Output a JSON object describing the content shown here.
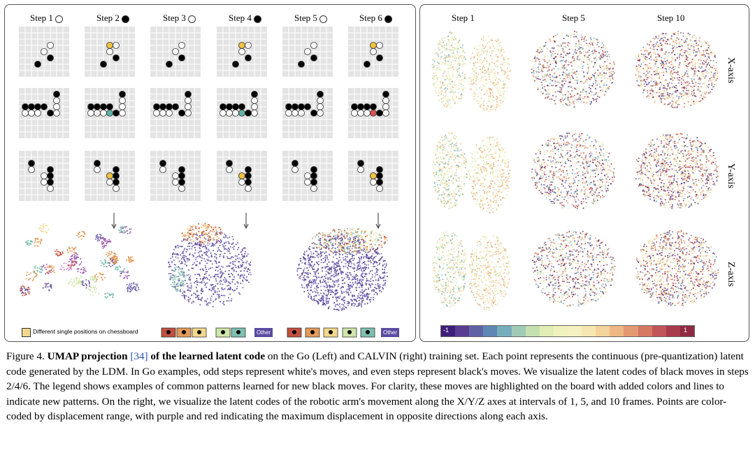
{
  "left_panel": {
    "steps": [
      {
        "label": "Step 1",
        "stone": "white"
      },
      {
        "label": "Step 2",
        "stone": "black"
      },
      {
        "label": "Step 3",
        "stone": "white"
      },
      {
        "label": "Step 4",
        "stone": "black"
      },
      {
        "label": "Step 5",
        "stone": "white"
      },
      {
        "label": "Step 6",
        "stone": "black"
      }
    ],
    "legend": {
      "single_positions_label": "Different single positions on chessboard",
      "other_label": "Other"
    },
    "cluster_colors": [
      "#c2503e",
      "#e39a5a",
      "#f2d88d",
      "#cfe6a9",
      "#7fbfb0",
      "#6b5ba8",
      "#a05db0",
      "#d28fc8"
    ]
  },
  "right_panel": {
    "columns": [
      "Step 1",
      "Step 5",
      "Step 10"
    ],
    "rows": [
      "X-axis",
      "Y-axis",
      "Z-axis"
    ],
    "colorbar": {
      "min_label": "-1",
      "max_label": "1",
      "colors": [
        "#3d1f7a",
        "#5a3d91",
        "#5f63a6",
        "#5e87b4",
        "#78aebb",
        "#9fcbb6",
        "#c5e0b0",
        "#e0edb4",
        "#eef3bd",
        "#f5f1c0",
        "#f6e7b0",
        "#f3d49a",
        "#eeb884",
        "#e39a72",
        "#d47862",
        "#c25557",
        "#a83b4c",
        "#8e2a42"
      ]
    }
  },
  "caption": {
    "figure_label": "Figure 4.",
    "title_bold": "UMAP projection",
    "ref": "[34]",
    "title_bold_2": "of the learned latent code",
    "body": "on the Go (Left) and CALVIN (right) training set. Each point represents the continuous (pre-quantization) latent code generated by the LDM. In Go examples, odd steps represent white's moves, and even steps represent black's moves. We visualize the latent codes of black moves in steps 2/4/6. The legend shows examples of common patterns learned for new black moves. For clarity, these moves are highlighted on the board with added colors and lines to indicate new patterns. On the right, we visualize the latent codes of the robotic arm's movement along the X/Y/Z axes at intervals of 1, 5, and 10 frames. Points are color-coded by displacement range, with purple and red indicating the maximum displacement in opposite directions along each axis."
  }
}
